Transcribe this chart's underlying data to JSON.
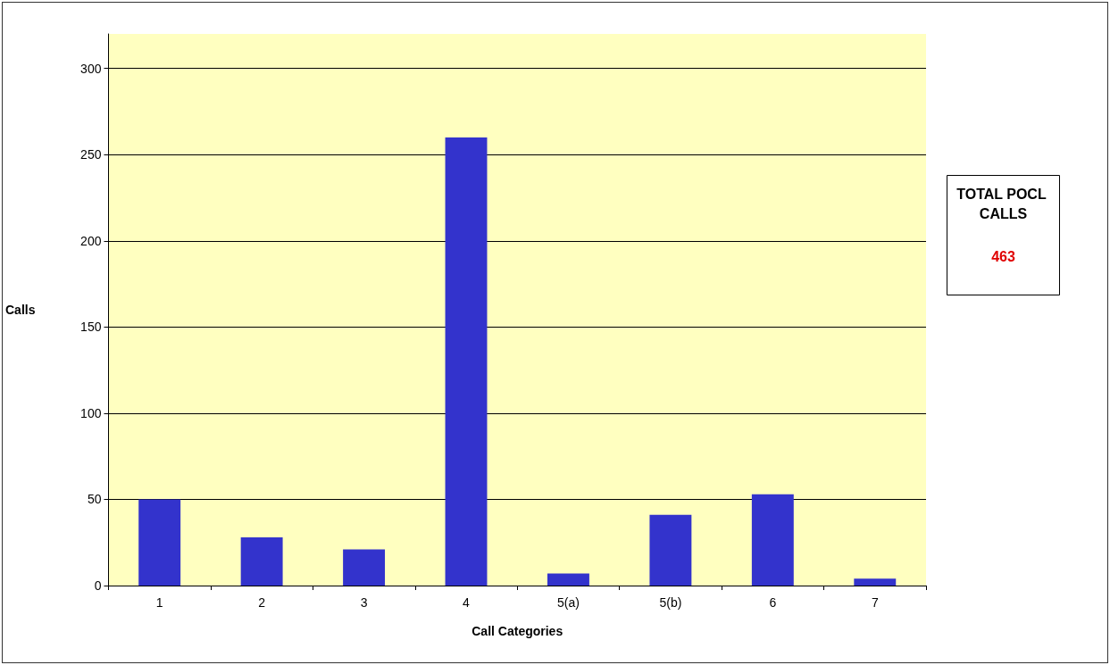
{
  "chart_data": {
    "type": "bar",
    "xlabel": "Call Categories",
    "ylabel": "Calls",
    "categories": [
      "1",
      "2",
      "3",
      "4",
      "5(a)",
      "5(b)",
      "6",
      "7"
    ],
    "values": [
      50,
      28,
      21,
      260,
      7,
      41,
      53,
      4
    ],
    "color": "#3333cc",
    "ylim": [
      0,
      320
    ],
    "yticks": [
      0,
      50,
      100,
      150,
      200,
      250,
      300
    ],
    "grid": "y",
    "annotations": [
      "TOTAL POCL CALLS",
      "463"
    ]
  }
}
